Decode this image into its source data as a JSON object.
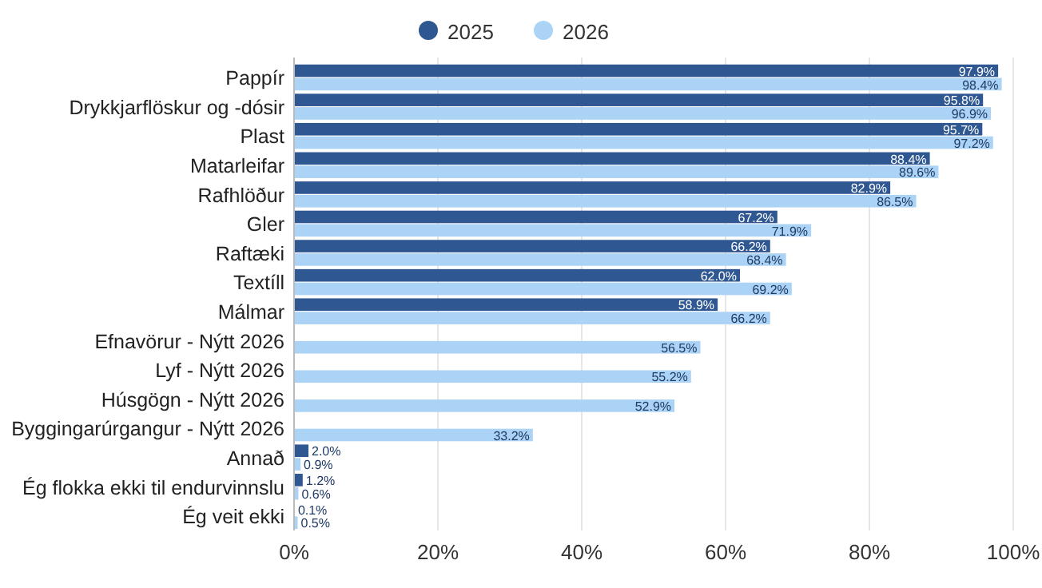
{
  "chart_data": {
    "type": "bar",
    "orientation": "horizontal",
    "categories": [
      "Pappír",
      "Drykkjarflöskur og -dósir",
      "Plast",
      "Matarleifar",
      "Rafhlöður",
      "Gler",
      "Raftæki",
      "Textíll",
      "Málmar",
      "Efnavörur - Nýtt 2026",
      "Lyf - Nýtt 2026",
      "Húsgögn - Nýtt 2026",
      "Byggingarúrgangur - Nýtt 2026",
      "Annað",
      "Ég flokka ekki til endurvinnslu",
      "Ég veit ekki"
    ],
    "series": [
      {
        "name": "2025",
        "color": "#2f5792",
        "values": [
          97.9,
          95.8,
          95.7,
          88.4,
          82.9,
          67.2,
          66.2,
          62.0,
          58.9,
          null,
          null,
          null,
          null,
          2.0,
          1.2,
          0.1
        ],
        "value_labels": [
          "97.9%",
          "95.8%",
          "95.7%",
          "88.4%",
          "82.9%",
          "67.2%",
          "66.2%",
          "62.0%",
          "58.9%",
          null,
          null,
          null,
          null,
          "2.0%",
          "1.2%",
          "0.1%"
        ]
      },
      {
        "name": "2026",
        "color": "#abd3f5",
        "values": [
          98.4,
          96.9,
          97.2,
          89.6,
          86.5,
          71.9,
          68.4,
          69.2,
          66.2,
          56.5,
          55.2,
          52.9,
          33.2,
          0.9,
          0.6,
          0.5
        ],
        "value_labels": [
          "98.4%",
          "96.9%",
          "97.2%",
          "89.6%",
          "86.5%",
          "71.9%",
          "68.4%",
          "69.2%",
          "66.2%",
          "56.5%",
          "55.2%",
          "52.9%",
          "33.2%",
          "0.9%",
          "0.6%",
          "0.5%"
        ]
      }
    ],
    "xlim": [
      0,
      100
    ],
    "xticks": [
      {
        "value": 0,
        "label": "0%"
      },
      {
        "value": 20,
        "label": "20%"
      },
      {
        "value": 40,
        "label": "40%"
      },
      {
        "value": 60,
        "label": "60%"
      },
      {
        "value": 80,
        "label": "80%"
      },
      {
        "value": 100,
        "label": "100%"
      }
    ],
    "grid": "x",
    "legend": "top"
  }
}
